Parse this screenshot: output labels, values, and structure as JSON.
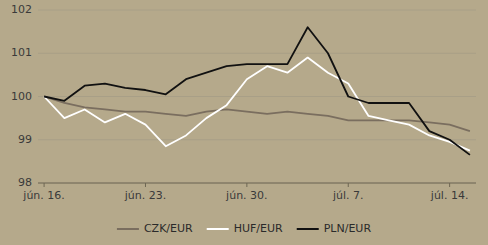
{
  "chart_data": {
    "type": "line",
    "categories": [
      "jún. 16.",
      null,
      null,
      null,
      null,
      "jún. 23.",
      null,
      null,
      null,
      null,
      "jún. 30.",
      null,
      null,
      null,
      null,
      "júl. 7.",
      null,
      null,
      null,
      null,
      "júl. 14.",
      null
    ],
    "series": [
      {
        "name": "CZK/EUR",
        "color": "#7a6e5f",
        "values": [
          100.0,
          99.85,
          99.75,
          99.7,
          99.65,
          99.65,
          99.6,
          99.55,
          99.65,
          99.7,
          99.65,
          99.6,
          99.65,
          99.6,
          99.55,
          99.45,
          99.45,
          99.45,
          99.45,
          99.4,
          99.35,
          99.2
        ]
      },
      {
        "name": "HUF/EUR",
        "color": "#ffffff",
        "values": [
          100.0,
          99.5,
          99.7,
          99.4,
          99.6,
          99.35,
          98.85,
          99.1,
          99.5,
          99.8,
          100.4,
          100.7,
          100.55,
          100.9,
          100.55,
          100.3,
          99.55,
          99.45,
          99.35,
          99.1,
          98.95,
          98.75
        ]
      },
      {
        "name": "PLN/EUR",
        "color": "#111111",
        "values": [
          100.0,
          99.9,
          100.25,
          100.3,
          100.2,
          100.15,
          100.05,
          100.4,
          100.55,
          100.7,
          100.75,
          100.75,
          100.75,
          101.6,
          101.0,
          100.0,
          99.85,
          99.85,
          99.85,
          99.2,
          99.0,
          98.65
        ]
      }
    ],
    "ylim": [
      98,
      102
    ],
    "yticks": [
      98,
      99,
      100,
      101,
      102
    ],
    "grid": true,
    "legend": "bottom"
  }
}
